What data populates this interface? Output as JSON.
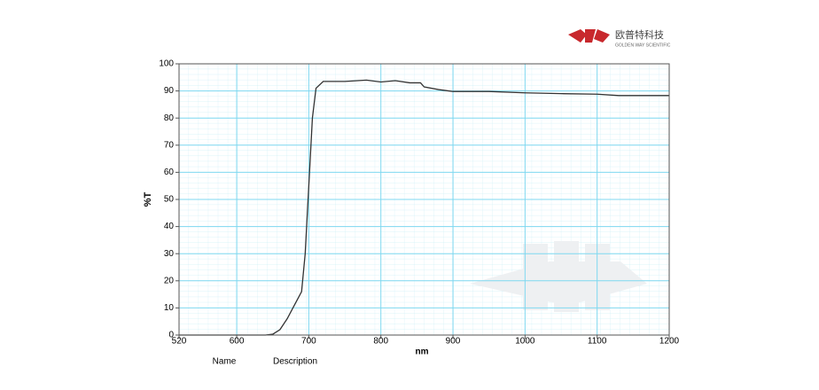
{
  "chart_data": {
    "type": "line",
    "xlabel": "nm",
    "ylabel": "%T",
    "x": [
      520,
      640,
      650,
      660,
      670,
      680,
      690,
      695,
      700,
      705,
      710,
      720,
      750,
      780,
      800,
      820,
      840,
      855,
      860,
      880,
      900,
      950,
      1000,
      1050,
      1100,
      1130,
      1200
    ],
    "series": [
      {
        "color": "#333333",
        "values": [
          0,
          0,
          0.3,
          2,
          6,
          11,
          16,
          30,
          55,
          80,
          91,
          93.5,
          93.5,
          94,
          93.3,
          93.8,
          93,
          93,
          91.5,
          90.5,
          89.8,
          89.8,
          89.3,
          89,
          88.8,
          88.3,
          88.3
        ]
      }
    ],
    "xlim": [
      520,
      1200
    ],
    "ylim": [
      0,
      100
    ],
    "xticks": [
      520,
      600,
      700,
      800,
      900,
      1000,
      1100,
      1200
    ],
    "yticks": [
      0,
      10,
      20,
      30,
      40,
      50,
      60,
      70,
      80,
      90,
      100
    ],
    "grid": true
  },
  "footer": {
    "name": "Name",
    "description": "Description"
  },
  "logo": {
    "brand": "欧普特科技",
    "tagline": "GOLDEN WAY SCIENTIFIC"
  }
}
